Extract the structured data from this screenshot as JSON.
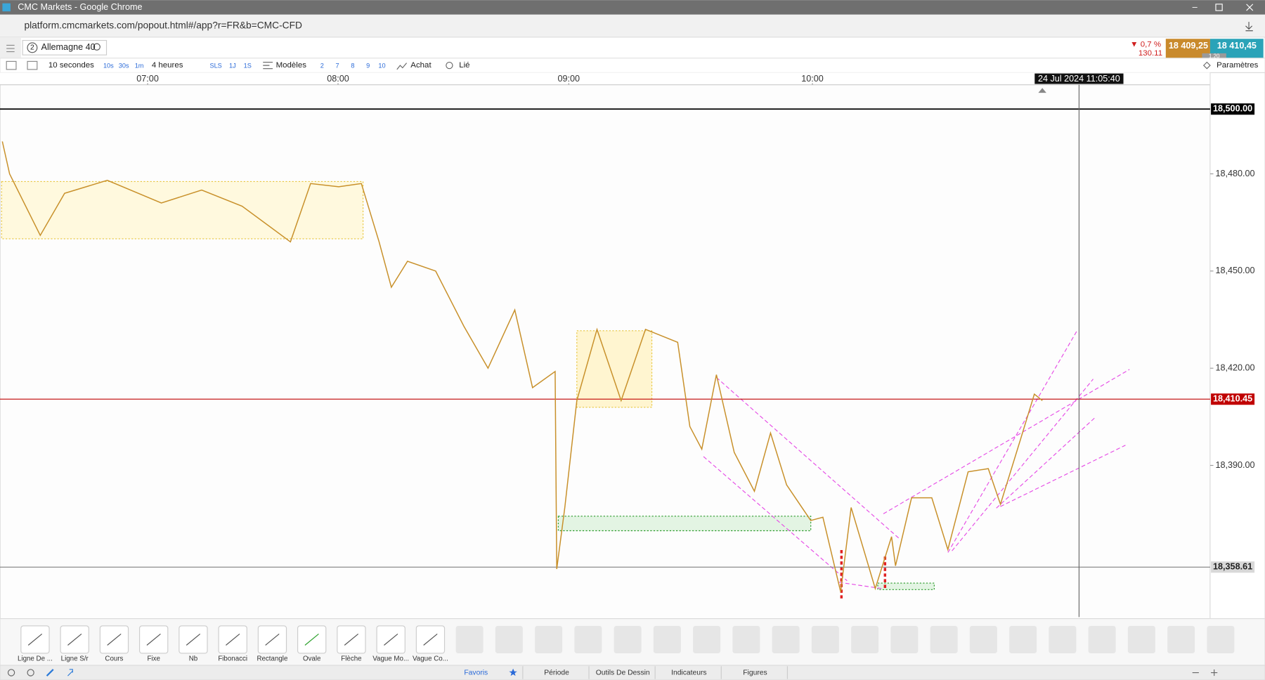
{
  "window": {
    "title": "CMC Markets - Google Chrome",
    "url": "platform.cmcmarkets.com/popout.html#/app?r=FR&b=CMC-CFD"
  },
  "instrument": {
    "badge": "2",
    "name": "Allemagne 40",
    "change_pct": "▼ 0,7 %",
    "change": "130.11",
    "sell": "18 409,25",
    "buy": "18 410,45",
    "spread": "1.20"
  },
  "toolbar": {
    "interval": "10 secondes",
    "quick": [
      "10s",
      "30s",
      "1m"
    ],
    "range": "4 heures",
    "ranges": [
      "SLS",
      "1J",
      "1S"
    ],
    "models": "Modèles",
    "counts": [
      "2",
      "7",
      "8",
      "9",
      "10"
    ],
    "buy": "Achat",
    "linked": "Lié",
    "settings": "Paramètres"
  },
  "chart_data": {
    "type": "line",
    "color": "#c8902a",
    "x": [
      6.237,
      6.275,
      6.436,
      6.564,
      6.788,
      7.072,
      7.284,
      7.496,
      7.75,
      7.856,
      8.003,
      8.101,
      8.178,
      8.231,
      8.301,
      8.423,
      8.545,
      8.65,
      8.766,
      8.843,
      8.941,
      8.948,
      8.983,
      9.033,
      9.116,
      9.215,
      9.315,
      9.447,
      9.497,
      9.546,
      9.606,
      9.679,
      9.762,
      9.828,
      9.894,
      9.993,
      10.043,
      10.116,
      10.159,
      10.258,
      10.325,
      10.341,
      10.407,
      10.49,
      10.556,
      10.639,
      10.722,
      10.772,
      10.854,
      10.911,
      10.944
    ],
    "values": [
      18490,
      18480,
      18461,
      18474,
      18478,
      18471,
      18475,
      18470,
      18459,
      18477,
      18476,
      18477,
      18459,
      18445,
      18453,
      18450,
      18433,
      18420,
      18438,
      18414,
      18419,
      18358,
      18377,
      18410,
      18432,
      18410,
      18432,
      18428,
      18402,
      18395,
      18418,
      18394,
      18382,
      18400,
      18384,
      18373,
      18374,
      18351,
      18377,
      18352,
      18368,
      18359,
      18380,
      18380,
      18364,
      18388,
      18389,
      18378,
      18398,
      18412,
      18410
    ],
    "xlim": [
      6.23,
      11.63
    ],
    "xticks": [
      {
        "value": 7,
        "label": "07:00"
      },
      {
        "value": 8,
        "label": "08:00"
      },
      {
        "value": 9,
        "label": "09:00"
      },
      {
        "value": 10,
        "label": "10:00"
      }
    ],
    "ylim": [
      18343.2,
      18507.5
    ],
    "yticks": [
      {
        "value": 18480,
        "label": "18,480.00"
      },
      {
        "value": 18450,
        "label": "18,450.00"
      },
      {
        "value": 18420,
        "label": "18,420.00"
      },
      {
        "value": 18390,
        "label": "18,390.00"
      }
    ],
    "levels": [
      {
        "value": 18500,
        "label": "18,500.00",
        "color": "#000000"
      },
      {
        "value": 18410.45,
        "label": "18,410.45",
        "color": "#c00000"
      },
      {
        "value": 18358.61,
        "label": "18,358.61",
        "color": "#808080"
      }
    ],
    "cursor": {
      "value": 11.0944,
      "label": "24 Jul 2024 11:05:40"
    }
  },
  "tools": [
    "Ligne De ...",
    "Ligne S/r",
    "Cours",
    "Fixe",
    "Nb",
    "Fibonacci",
    "Rectangle",
    "Ovale",
    "Flèche",
    "Vague Mo...",
    "Vague Co..."
  ],
  "tabs": [
    "Favoris",
    "Période",
    "Outils De Dessin",
    "Indicateurs",
    "Figures"
  ]
}
